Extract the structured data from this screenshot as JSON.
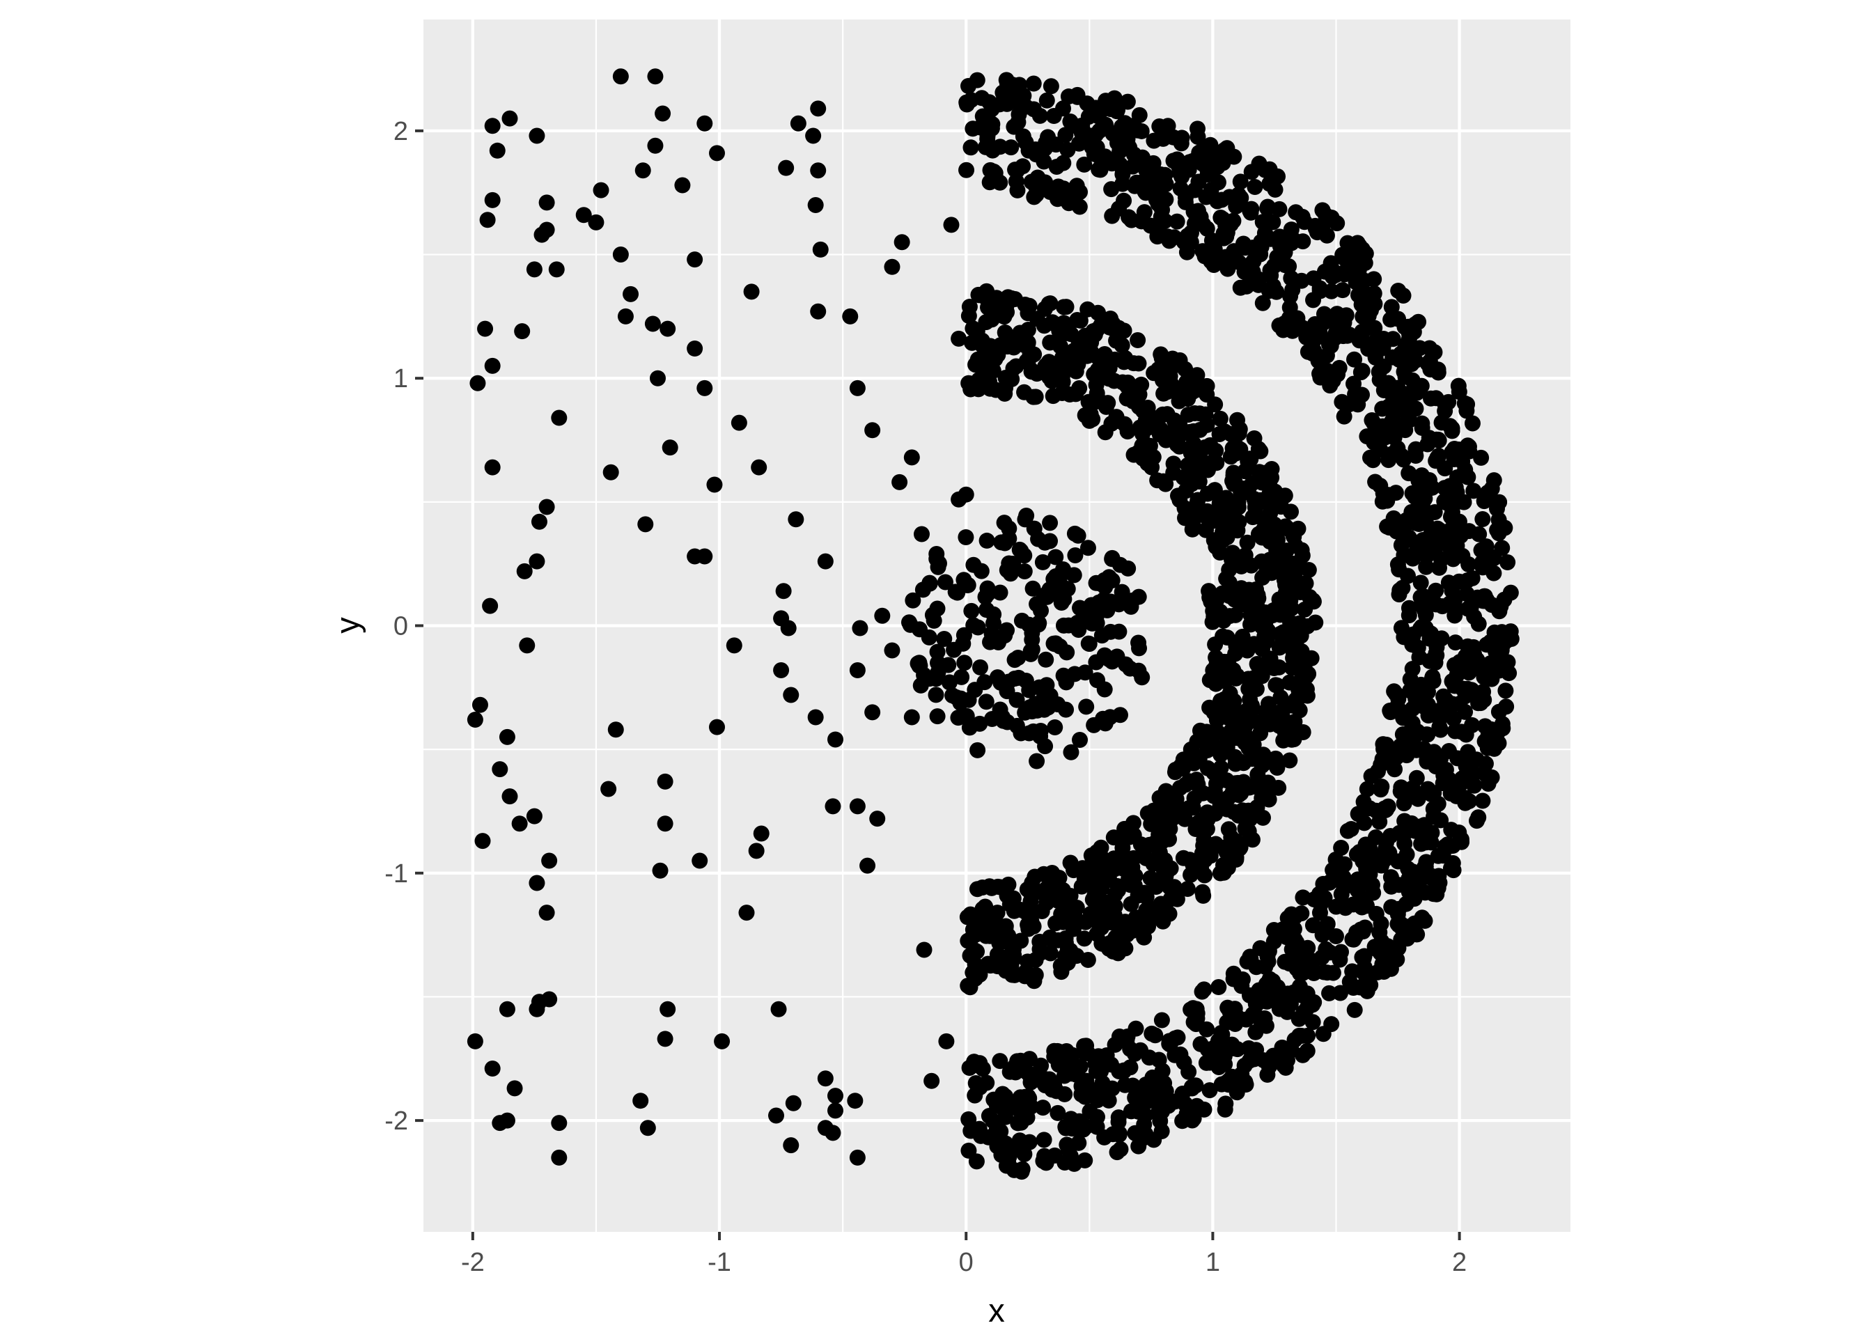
{
  "chart_data": {
    "type": "scatter",
    "title": "",
    "xlabel": "x",
    "ylabel": "y",
    "xlim": [
      -2.2,
      2.45
    ],
    "ylim": [
      -2.45,
      2.45
    ],
    "x_ticks": [
      -2,
      -1,
      0,
      1,
      2
    ],
    "x_tick_labels": [
      "-2",
      "-1",
      "0",
      "1",
      "2"
    ],
    "y_ticks": [
      -2,
      -1,
      0,
      1,
      2
    ],
    "y_tick_labels": [
      "-2",
      "-1",
      "0",
      "1",
      "2"
    ],
    "grid": true,
    "legend": "none",
    "colors": {
      "panel": "#ebebeb",
      "grid": "#ffffff",
      "point": "#000000",
      "tick_text": "#4d4d4d",
      "tick_mark": "#333333"
    },
    "series": [
      {
        "values": [
          [
            -1.98,
            0.98
          ],
          [
            -1.95,
            1.2
          ],
          [
            -1.92,
            1.05
          ],
          [
            -1.92,
            1.72
          ],
          [
            -1.94,
            1.64
          ],
          [
            -1.92,
            2.02
          ],
          [
            -1.85,
            2.05
          ],
          [
            -1.9,
            1.92
          ],
          [
            -1.74,
            1.98
          ],
          [
            -1.72,
            1.58
          ],
          [
            -1.7,
            1.6
          ],
          [
            -1.7,
            1.71
          ],
          [
            -1.75,
            1.44
          ],
          [
            -1.66,
            1.44
          ],
          [
            -1.8,
            1.19
          ],
          [
            -1.65,
            0.84
          ],
          [
            -1.92,
            0.64
          ],
          [
            -1.7,
            0.48
          ],
          [
            -1.73,
            0.42
          ],
          [
            -1.74,
            0.26
          ],
          [
            -1.79,
            0.22
          ],
          [
            -1.93,
            0.08
          ],
          [
            -1.78,
            -0.08
          ],
          [
            -1.97,
            -0.32
          ],
          [
            -1.99,
            -0.38
          ],
          [
            -1.86,
            -0.45
          ],
          [
            -1.89,
            -0.58
          ],
          [
            -1.85,
            -0.69
          ],
          [
            -1.81,
            -0.8
          ],
          [
            -1.75,
            -0.77
          ],
          [
            -1.96,
            -0.87
          ],
          [
            -1.69,
            -0.95
          ],
          [
            -1.74,
            -1.04
          ],
          [
            -1.7,
            -1.16
          ],
          [
            -1.73,
            -1.52
          ],
          [
            -1.69,
            -1.51
          ],
          [
            -1.74,
            -1.55
          ],
          [
            -1.86,
            -1.55
          ],
          [
            -1.99,
            -1.68
          ],
          [
            -1.92,
            -1.79
          ],
          [
            -1.83,
            -1.87
          ],
          [
            -1.89,
            -2.01
          ],
          [
            -1.86,
            -2.0
          ],
          [
            -1.65,
            -2.01
          ],
          [
            -1.65,
            -2.15
          ],
          [
            -1.4,
            2.22
          ],
          [
            -1.26,
            2.22
          ],
          [
            -1.23,
            2.07
          ],
          [
            -1.26,
            1.94
          ],
          [
            -1.31,
            1.84
          ],
          [
            -1.48,
            1.76
          ],
          [
            -1.5,
            1.63
          ],
          [
            -1.55,
            1.66
          ],
          [
            -1.4,
            1.5
          ],
          [
            -1.36,
            1.34
          ],
          [
            -1.38,
            1.25
          ],
          [
            -1.27,
            1.22
          ],
          [
            -1.21,
            1.2
          ],
          [
            -1.25,
            1.0
          ],
          [
            -1.15,
            1.78
          ],
          [
            -1.1,
            1.48
          ],
          [
            -1.1,
            1.12
          ],
          [
            -1.06,
            0.96
          ],
          [
            -1.2,
            0.72
          ],
          [
            -1.44,
            0.62
          ],
          [
            -1.3,
            0.41
          ],
          [
            -1.1,
            0.28
          ],
          [
            -1.06,
            0.28
          ],
          [
            -1.42,
            -0.42
          ],
          [
            -1.45,
            -0.66
          ],
          [
            -1.22,
            -0.63
          ],
          [
            -1.22,
            -0.8
          ],
          [
            -1.24,
            -0.99
          ],
          [
            -1.08,
            -0.95
          ],
          [
            -1.21,
            -1.55
          ],
          [
            -1.22,
            -1.67
          ],
          [
            -1.32,
            -1.92
          ],
          [
            -1.29,
            -2.03
          ],
          [
            -1.06,
            2.03
          ],
          [
            -1.01,
            1.91
          ],
          [
            -0.87,
            1.35
          ],
          [
            -1.02,
            0.57
          ],
          [
            -0.92,
            0.82
          ],
          [
            -0.84,
            0.64
          ],
          [
            -0.94,
            -0.08
          ],
          [
            -1.01,
            -0.41
          ],
          [
            -0.99,
            -1.68
          ],
          [
            -0.89,
            -1.16
          ],
          [
            -0.85,
            -0.91
          ],
          [
            -0.83,
            -0.84
          ],
          [
            -0.76,
            -1.55
          ],
          [
            -0.77,
            -1.98
          ],
          [
            -0.7,
            -1.93
          ],
          [
            -0.71,
            -2.1
          ],
          [
            -0.68,
            2.03
          ],
          [
            -0.6,
            2.09
          ],
          [
            -0.62,
            1.98
          ],
          [
            -0.73,
            1.85
          ],
          [
            -0.6,
            1.84
          ],
          [
            -0.61,
            1.7
          ],
          [
            -0.59,
            1.52
          ],
          [
            -0.6,
            1.27
          ],
          [
            -0.47,
            1.25
          ],
          [
            -0.44,
            0.96
          ],
          [
            -0.38,
            0.79
          ],
          [
            -0.22,
            0.68
          ],
          [
            -0.27,
            0.58
          ],
          [
            -0.69,
            0.43
          ],
          [
            -0.57,
            0.26
          ],
          [
            -0.74,
            0.14
          ],
          [
            -0.75,
            0.03
          ],
          [
            -0.72,
            -0.01
          ],
          [
            -0.75,
            -0.18
          ],
          [
            -0.71,
            -0.28
          ],
          [
            -0.61,
            -0.37
          ],
          [
            -0.53,
            -0.46
          ],
          [
            -0.44,
            -0.18
          ],
          [
            -0.43,
            -0.01
          ],
          [
            -0.34,
            0.04
          ],
          [
            -0.3,
            -0.1
          ],
          [
            -0.38,
            -0.35
          ],
          [
            -0.22,
            -0.37
          ],
          [
            -0.54,
            -0.73
          ],
          [
            -0.44,
            -0.73
          ],
          [
            -0.36,
            -0.78
          ],
          [
            -0.4,
            -0.97
          ],
          [
            -0.57,
            -1.83
          ],
          [
            -0.53,
            -1.9
          ],
          [
            -0.53,
            -1.96
          ],
          [
            -0.45,
            -1.92
          ],
          [
            -0.57,
            -2.03
          ],
          [
            -0.54,
            -2.05
          ],
          [
            -0.44,
            -2.15
          ],
          [
            -0.3,
            1.45
          ],
          [
            -0.26,
            1.55
          ],
          [
            -0.06,
            1.62
          ],
          [
            -0.03,
            1.16
          ],
          [
            -0.18,
            0.37
          ],
          [
            -0.12,
            0.29
          ],
          [
            -0.12,
            0.27
          ],
          [
            -0.03,
            0.51
          ],
          [
            0.0,
            0.53
          ],
          [
            -0.13,
            0.02
          ],
          [
            -0.17,
            -1.31
          ],
          [
            -0.08,
            -1.68
          ],
          [
            -0.14,
            -1.84
          ]
        ]
      },
      {
        "generated": "ring",
        "points": 1500,
        "center": [
          0.0,
          0.0
        ],
        "r_min": 1.75,
        "r_max": 2.22,
        "theta_min_deg": -90,
        "theta_max_deg": 90
      },
      {
        "generated": "ring",
        "points": 1050,
        "center": [
          0.0,
          -0.05
        ],
        "r_min": 1.0,
        "r_max": 1.42,
        "theta_min_deg": -90,
        "theta_max_deg": 90
      },
      {
        "generated": "disc",
        "points": 230,
        "center": [
          0.25,
          -0.05
        ],
        "r_min": 0.0,
        "r_max": 0.5
      }
    ]
  }
}
